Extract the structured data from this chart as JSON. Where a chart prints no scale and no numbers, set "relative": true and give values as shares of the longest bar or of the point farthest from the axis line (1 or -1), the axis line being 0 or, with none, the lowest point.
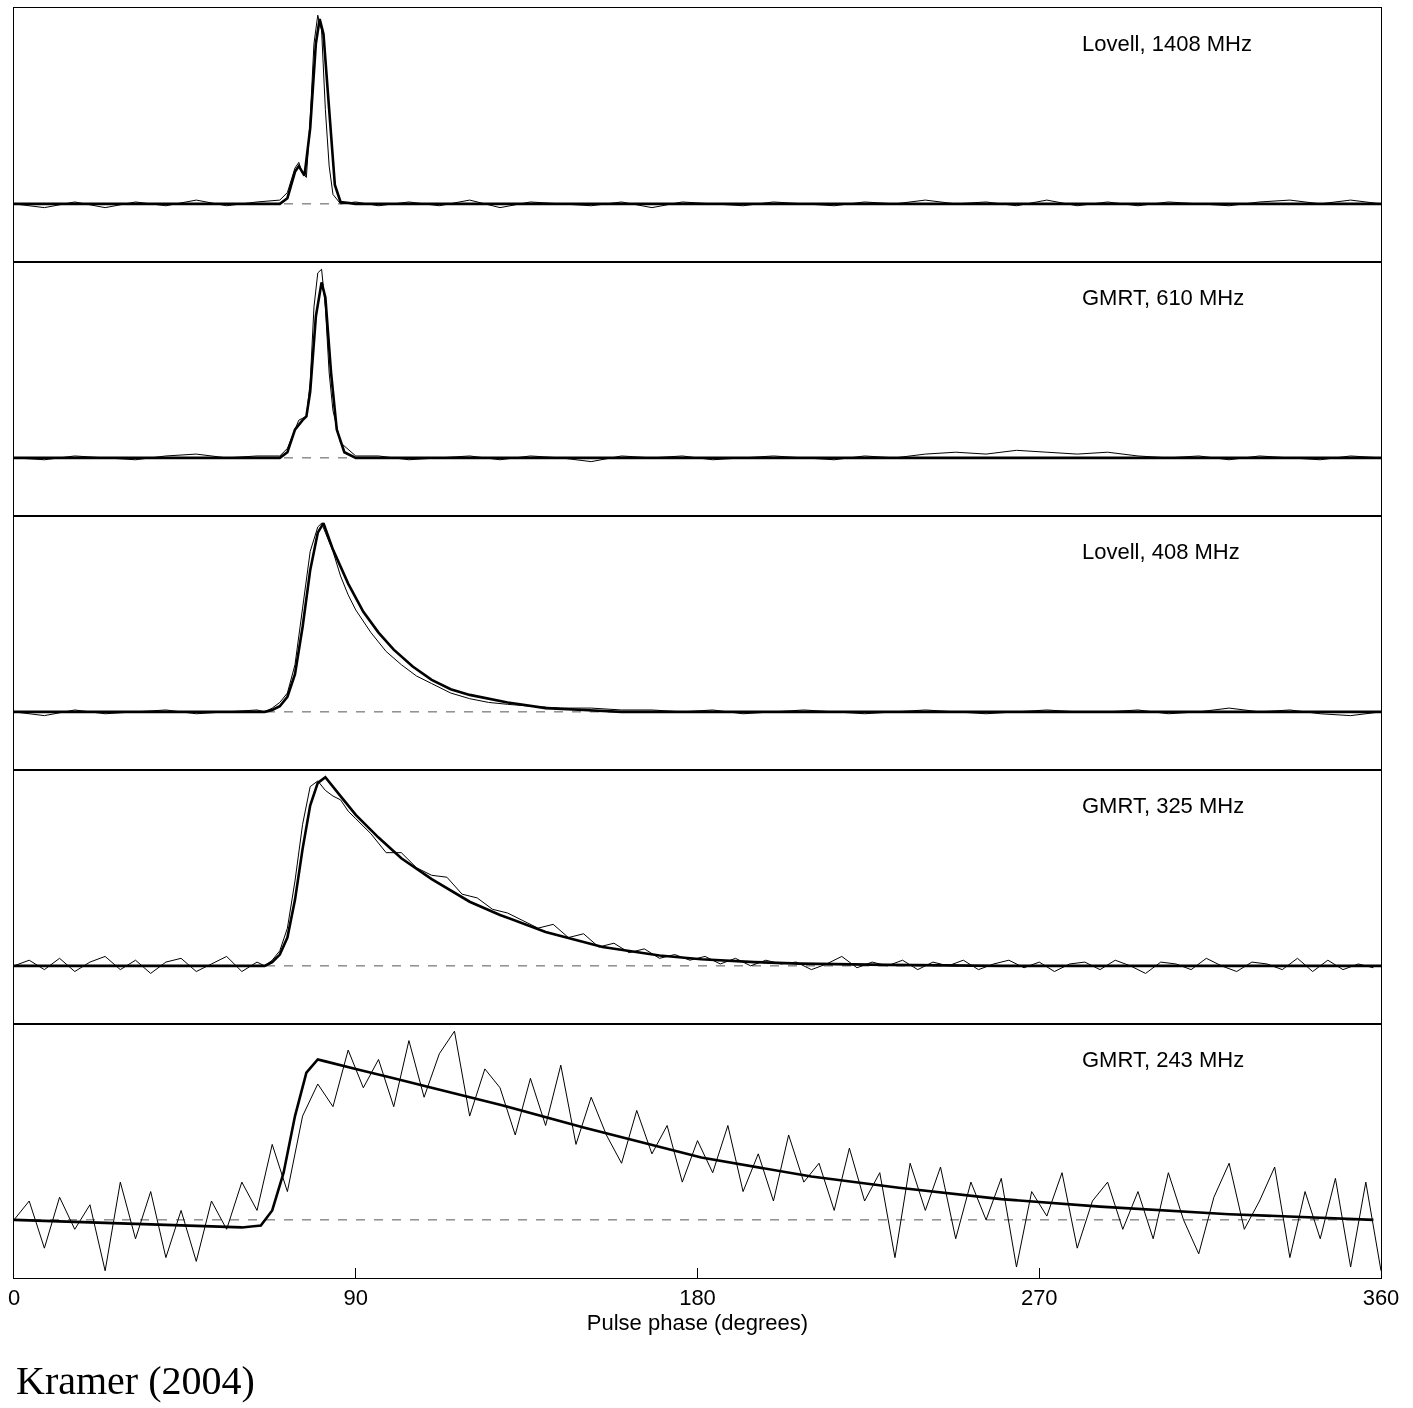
{
  "chart_data": [
    {
      "type": "line",
      "relative": true,
      "annotations": [
        "Lovell, 1408 MHz"
      ],
      "xlim": [
        0,
        360
      ],
      "xticks": [
        0,
        90,
        180,
        270,
        360
      ],
      "tick_labels": false,
      "ref_lines": [
        {
          "axis": "y",
          "value": 0,
          "line_style": "dashed",
          "color": "#555555"
        }
      ],
      "series": [
        {
          "color": "#000000",
          "x": [
            0,
            8,
            16,
            24,
            32,
            40,
            48,
            56,
            64,
            70,
            72,
            74,
            75,
            76,
            77,
            78,
            79,
            80,
            81,
            82,
            83,
            84,
            86,
            90,
            96,
            104,
            112,
            120,
            128,
            136,
            144,
            152,
            160,
            168,
            176,
            184,
            192,
            200,
            208,
            216,
            224,
            232,
            240,
            248,
            256,
            264,
            272,
            280,
            288,
            296,
            304,
            312,
            320,
            328,
            336,
            344,
            352,
            360
          ],
          "values": [
            0,
            -0.02,
            0.01,
            -0.02,
            0.01,
            -0.01,
            0.02,
            -0.01,
            0.01,
            0.02,
            0.06,
            0.19,
            0.22,
            0.16,
            0.14,
            0.45,
            0.85,
            1.0,
            0.92,
            0.5,
            0.2,
            0.05,
            0.0,
            0.01,
            -0.01,
            0.01,
            -0.01,
            0.02,
            -0.02,
            0.01,
            0.0,
            -0.01,
            0.01,
            -0.02,
            0.01,
            0.0,
            -0.01,
            0.01,
            0.0,
            -0.01,
            0.01,
            0.0,
            0.02,
            0.0,
            0.01,
            -0.01,
            0.02,
            -0.01,
            0.01,
            -0.01,
            0.01,
            0.0,
            -0.01,
            0.01,
            0.02,
            0.0,
            0.02,
            0.0
          ]
        },
        {
          "color": "#000000",
          "x": [
            0,
            70,
            72,
            74,
            75,
            76.5,
            78,
            79.5,
            80.5,
            81.5,
            83,
            84.5,
            86,
            90,
            360
          ],
          "values": [
            0,
            0,
            0.03,
            0.17,
            0.2,
            0.15,
            0.4,
            0.85,
            0.98,
            0.9,
            0.5,
            0.1,
            0.01,
            0,
            0
          ]
        }
      ]
    },
    {
      "type": "line",
      "relative": true,
      "annotations": [
        "GMRT, 610 MHz"
      ],
      "xlim": [
        0,
        360
      ],
      "xticks": [
        0,
        90,
        180,
        270,
        360
      ],
      "tick_labels": false,
      "ref_lines": [
        {
          "axis": "y",
          "value": 0,
          "line_style": "dashed",
          "color": "#555555"
        }
      ],
      "series": [
        {
          "color": "#000000",
          "x": [
            0,
            8,
            16,
            24,
            32,
            40,
            48,
            56,
            64,
            70,
            72,
            74,
            75,
            76,
            77,
            78,
            79,
            80,
            81,
            82,
            83,
            84,
            86,
            90,
            96,
            104,
            112,
            120,
            128,
            136,
            144,
            152,
            160,
            168,
            176,
            184,
            192,
            200,
            208,
            216,
            224,
            232,
            240,
            248,
            256,
            264,
            272,
            280,
            288,
            296,
            304,
            312,
            320,
            328,
            336,
            344,
            352,
            360
          ],
          "values": [
            0,
            -0.01,
            0.01,
            0,
            -0.01,
            0.01,
            0.02,
            0,
            0.01,
            0.01,
            0.05,
            0.15,
            0.2,
            0.21,
            0.22,
            0.4,
            0.8,
            0.98,
            1.0,
            0.8,
            0.45,
            0.25,
            0.08,
            0.01,
            0.01,
            -0.01,
            0.0,
            0.01,
            -0.01,
            0.01,
            0.0,
            -0.02,
            0.01,
            0.0,
            0.01,
            -0.01,
            0.0,
            0.01,
            0.0,
            -0.01,
            0.01,
            0.0,
            0.02,
            0.03,
            0.02,
            0.04,
            0.03,
            0.02,
            0.03,
            0.01,
            0.0,
            0.01,
            -0.01,
            0.01,
            0.0,
            -0.01,
            0.01,
            0.0
          ]
        },
        {
          "color": "#000000",
          "x": [
            0,
            70,
            72,
            74,
            76,
            77,
            78,
            79.5,
            81,
            82,
            83.5,
            85,
            87,
            90,
            360
          ],
          "values": [
            0,
            0,
            0.03,
            0.15,
            0.2,
            0.22,
            0.35,
            0.75,
            0.93,
            0.85,
            0.45,
            0.15,
            0.03,
            0,
            0
          ]
        }
      ]
    },
    {
      "type": "line",
      "relative": true,
      "annotations": [
        "Lovell, 408 MHz"
      ],
      "xlim": [
        0,
        360
      ],
      "xticks": [
        0,
        90,
        180,
        270,
        360
      ],
      "tick_labels": false,
      "ref_lines": [
        {
          "axis": "y",
          "value": 0,
          "line_style": "dashed",
          "color": "#555555"
        }
      ],
      "series": [
        {
          "color": "#000000",
          "x": [
            0,
            8,
            16,
            24,
            32,
            40,
            48,
            56,
            64,
            66,
            68,
            70,
            72,
            74,
            76,
            78,
            80,
            81,
            82,
            84,
            86,
            88,
            90,
            94,
            98,
            102,
            106,
            110,
            115,
            120,
            125,
            130,
            136,
            144,
            152,
            160,
            168,
            176,
            184,
            192,
            200,
            208,
            216,
            224,
            232,
            240,
            248,
            256,
            264,
            272,
            280,
            288,
            296,
            304,
            312,
            320,
            328,
            336,
            344,
            352,
            360
          ],
          "values": [
            0,
            -0.02,
            0.01,
            -0.01,
            0,
            0.01,
            -0.01,
            0,
            0.01,
            0.0,
            0.02,
            0.05,
            0.1,
            0.25,
            0.55,
            0.85,
            0.98,
            1.0,
            0.95,
            0.85,
            0.72,
            0.62,
            0.54,
            0.42,
            0.32,
            0.25,
            0.19,
            0.15,
            0.1,
            0.07,
            0.05,
            0.04,
            0.03,
            0.02,
            0.02,
            0.01,
            0.01,
            0.0,
            0.01,
            -0.01,
            0.0,
            0.01,
            0.0,
            -0.01,
            0.0,
            0.01,
            0.0,
            -0.01,
            0.0,
            0.01,
            0.0,
            0.0,
            0.01,
            -0.01,
            0.0,
            0.02,
            0.0,
            0.01,
            -0.01,
            -0.02,
            0.0
          ]
        },
        {
          "color": "#000000",
          "x": [
            0,
            66,
            68,
            70,
            72,
            74,
            76,
            78,
            80,
            81.5,
            84,
            88,
            92,
            96,
            100,
            105,
            110,
            115,
            120,
            130,
            140,
            150,
            160,
            360
          ],
          "values": [
            0,
            0,
            0.01,
            0.03,
            0.08,
            0.2,
            0.45,
            0.75,
            0.95,
            1.0,
            0.86,
            0.68,
            0.53,
            0.42,
            0.33,
            0.24,
            0.17,
            0.12,
            0.09,
            0.05,
            0.02,
            0.01,
            0,
            0
          ]
        }
      ]
    },
    {
      "type": "line",
      "relative": true,
      "annotations": [
        "GMRT, 325 MHz"
      ],
      "xlim": [
        0,
        360
      ],
      "xticks": [
        0,
        90,
        180,
        270,
        360
      ],
      "tick_labels": false,
      "ref_lines": [
        {
          "axis": "y",
          "value": 0,
          "line_style": "dashed",
          "color": "#555555"
        }
      ],
      "series": [
        {
          "color": "#000000",
          "x": [
            0,
            4,
            8,
            12,
            16,
            20,
            24,
            28,
            32,
            36,
            40,
            44,
            48,
            52,
            56,
            60,
            64,
            66,
            68,
            70,
            72,
            74,
            76,
            78,
            80,
            82,
            84,
            86,
            88,
            90,
            94,
            98,
            102,
            106,
            110,
            114,
            118,
            122,
            126,
            130,
            134,
            138,
            142,
            146,
            150,
            154,
            158,
            162,
            166,
            170,
            174,
            178,
            182,
            186,
            190,
            194,
            198,
            202,
            206,
            210,
            214,
            218,
            222,
            226,
            230,
            234,
            238,
            242,
            246,
            250,
            254,
            258,
            262,
            266,
            270,
            274,
            278,
            282,
            286,
            290,
            294,
            298,
            302,
            306,
            310,
            314,
            318,
            322,
            326,
            330,
            334,
            338,
            342,
            346,
            350,
            354,
            358
          ],
          "values": [
            0,
            0.03,
            -0.02,
            0.04,
            -0.03,
            0.02,
            0.05,
            -0.02,
            0.03,
            -0.04,
            0.02,
            0.04,
            -0.03,
            0.01,
            0.05,
            -0.03,
            0.02,
            0.0,
            0.03,
            0.08,
            0.2,
            0.45,
            0.75,
            0.95,
            0.98,
            0.93,
            0.9,
            0.88,
            0.82,
            0.78,
            0.7,
            0.6,
            0.6,
            0.52,
            0.48,
            0.47,
            0.38,
            0.36,
            0.3,
            0.28,
            0.24,
            0.2,
            0.22,
            0.15,
            0.17,
            0.1,
            0.12,
            0.07,
            0.09,
            0.04,
            0.06,
            0.03,
            0.05,
            0.01,
            0.04,
            0.0,
            0.03,
            0.01,
            0.02,
            -0.02,
            0.01,
            0.05,
            -0.01,
            0.02,
            0.0,
            0.03,
            -0.02,
            0.02,
            0.0,
            0.03,
            -0.02,
            0.01,
            0.03,
            -0.01,
            0.02,
            -0.03,
            0.01,
            0.02,
            -0.02,
            0.03,
            0.0,
            -0.04,
            0.02,
            0.01,
            -0.02,
            0.04,
            0.0,
            -0.03,
            0.02,
            0.01,
            -0.02,
            0.04,
            -0.03,
            0.03,
            -0.02,
            0.01,
            -0.01
          ]
        },
        {
          "color": "#000000",
          "x": [
            0,
            66,
            68,
            70,
            72,
            74,
            76,
            78,
            80,
            82,
            86,
            90,
            96,
            102,
            110,
            120,
            128,
            140,
            155,
            170,
            181,
            195,
            207,
            230,
            260,
            360
          ],
          "values": [
            0,
            0,
            0.02,
            0.06,
            0.15,
            0.35,
            0.62,
            0.85,
            0.97,
            1.0,
            0.9,
            0.8,
            0.68,
            0.57,
            0.46,
            0.34,
            0.27,
            0.18,
            0.1,
            0.055,
            0.035,
            0.02,
            0.012,
            0.005,
            0,
            0
          ]
        }
      ]
    },
    {
      "type": "line",
      "relative": true,
      "xlabel": "Pulse phase (degrees)",
      "annotations": [
        "GMRT, 243 MHz",
        "Kramer (2004)"
      ],
      "xlim": [
        0,
        360
      ],
      "xticks": [
        0,
        90,
        180,
        270,
        360
      ],
      "tick_labels": "x",
      "ref_lines": [
        {
          "axis": "y",
          "value": 0,
          "line_style": "dashed",
          "color": "#555555"
        }
      ],
      "series": [
        {
          "color": "#000000",
          "x": [
            0,
            4,
            8,
            12,
            16,
            20,
            24,
            28,
            32,
            36,
            40,
            44,
            48,
            52,
            56,
            60,
            64,
            68,
            72,
            76,
            80,
            84,
            88,
            92,
            96,
            100,
            104,
            108,
            112,
            116,
            120,
            124,
            128,
            132,
            136,
            140,
            144,
            148,
            152,
            156,
            160,
            164,
            168,
            172,
            176,
            180,
            184,
            188,
            192,
            196,
            200,
            204,
            208,
            212,
            216,
            220,
            224,
            228,
            232,
            236,
            240,
            244,
            248,
            252,
            256,
            260,
            264,
            268,
            272,
            276,
            280,
            284,
            288,
            292,
            296,
            300,
            304,
            308,
            312,
            316,
            320,
            324,
            328,
            332,
            336,
            340,
            344,
            348,
            352,
            356,
            360
          ],
          "values": [
            0.0,
            0.1,
            -0.15,
            0.12,
            -0.05,
            0.08,
            -0.27,
            0.2,
            -0.1,
            0.15,
            -0.2,
            0.05,
            -0.22,
            0.1,
            -0.05,
            0.2,
            0.05,
            0.4,
            0.15,
            0.55,
            0.72,
            0.6,
            0.9,
            0.7,
            0.85,
            0.6,
            0.95,
            0.65,
            0.88,
            1.0,
            0.55,
            0.8,
            0.7,
            0.45,
            0.75,
            0.5,
            0.82,
            0.4,
            0.65,
            0.45,
            0.3,
            0.58,
            0.35,
            0.5,
            0.2,
            0.42,
            0.25,
            0.5,
            0.15,
            0.35,
            0.1,
            0.45,
            0.2,
            0.3,
            0.05,
            0.38,
            0.1,
            0.25,
            -0.2,
            0.3,
            0.05,
            0.28,
            -0.1,
            0.2,
            0.0,
            0.22,
            -0.25,
            0.15,
            0.02,
            0.25,
            -0.15,
            0.1,
            0.2,
            -0.05,
            0.15,
            -0.1,
            0.25,
            0.0,
            -0.18,
            0.12,
            0.3,
            -0.05,
            0.1,
            0.28,
            -0.2,
            0.15,
            -0.1,
            0.22,
            -0.25,
            0.2,
            -0.27
          ]
        },
        {
          "color": "#000000",
          "x": [
            0,
            30,
            60,
            65,
            68,
            71,
            74,
            77,
            80,
            82,
            90,
            100,
            110,
            128,
            150,
            181,
            210,
            233,
            260,
            286,
            320,
            358
          ],
          "values": [
            0,
            -0.02,
            -0.04,
            -0.03,
            0.05,
            0.25,
            0.55,
            0.78,
            0.85,
            0.84,
            0.8,
            0.75,
            0.7,
            0.61,
            0.49,
            0.33,
            0.23,
            0.17,
            0.11,
            0.07,
            0.03,
            0.0
          ]
        }
      ]
    }
  ]
}
